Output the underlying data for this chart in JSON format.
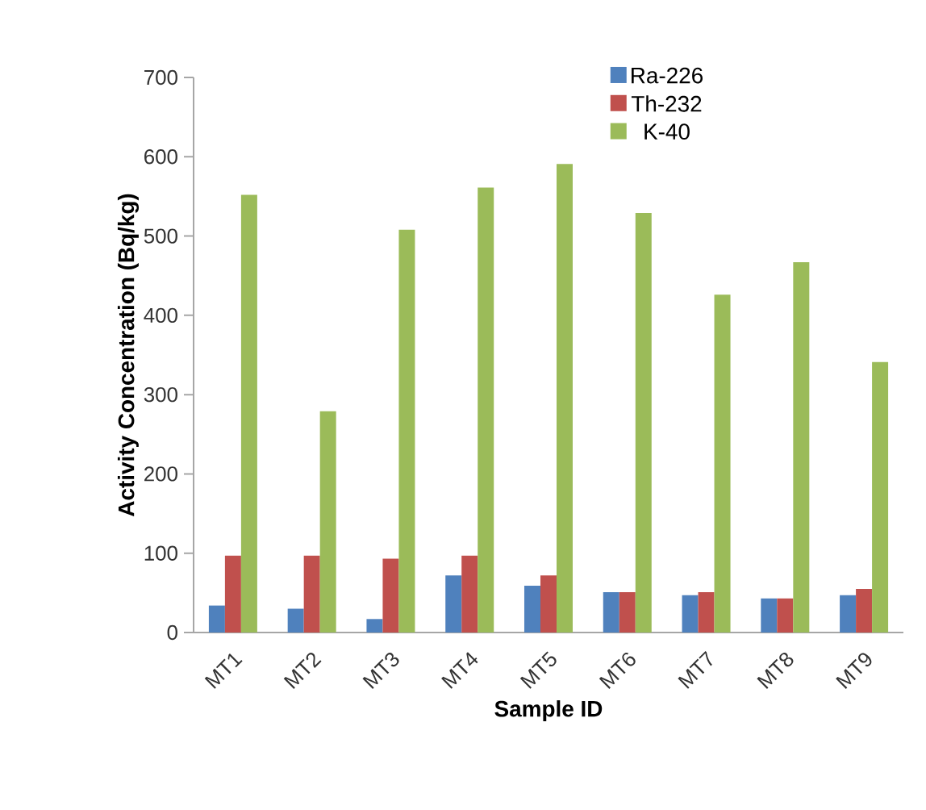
{
  "chart_data": {
    "type": "bar",
    "xlabel": "Sample ID",
    "ylabel": "Activity Concentration (Bq/kg)",
    "categories": [
      "MT1",
      "MT2",
      "MT3",
      "MT4",
      "MT5",
      "MT6",
      "MT7",
      "MT8",
      "MT9"
    ],
    "series": [
      {
        "name": "Ra-226",
        "color": "#4f81bd",
        "values": [
          34,
          30,
          17,
          72,
          59,
          51,
          47,
          43,
          47
        ]
      },
      {
        "name": "Th-232",
        "color": "#c0504d",
        "values": [
          97,
          97,
          93,
          97,
          72,
          51,
          51,
          43,
          55
        ]
      },
      {
        "name": "K-40",
        "color": "#9bbb59",
        "values": [
          552,
          279,
          508,
          561,
          591,
          529,
          426,
          467,
          341
        ]
      }
    ],
    "ylim": [
      0,
      700
    ],
    "yticks": [
      0,
      100,
      200,
      300,
      400,
      500,
      600,
      700
    ],
    "grid": false,
    "legend": "top right"
  }
}
